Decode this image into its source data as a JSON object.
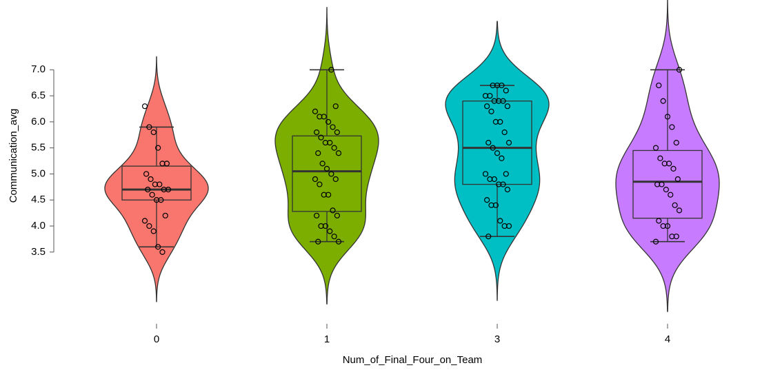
{
  "chart_data": {
    "type": "violin",
    "x_label": "Num_of_Final_Four_on_Team",
    "y_label": "Communication_avg",
    "categories": [
      "0",
      "1",
      "3",
      "4"
    ],
    "ylim": [
      2.4,
      8.3
    ],
    "yticks": [
      3.5,
      {
        "value": 4,
        "label": "4.0"
      },
      4.5,
      {
        "value": 5,
        "label": "5.0"
      },
      5.5,
      {
        "value": 6,
        "label": "6.0"
      },
      6.5,
      {
        "value": 7,
        "label": "7.0"
      }
    ],
    "groups": [
      {
        "color": "#F8766D",
        "box": {
          "whisker_low": 3.6,
          "q1": 4.5,
          "median": 4.7,
          "q3": 5.15,
          "whisker_high": 5.9
        },
        "points": [
          6.3,
          5.9,
          5.8,
          5.5,
          5.2,
          5.2,
          5.0,
          4.9,
          4.8,
          4.8,
          4.7,
          4.7,
          4.7,
          4.6,
          4.5,
          4.5,
          4.2,
          4.1,
          4.0,
          3.9,
          3.6,
          3.5
        ]
      },
      {
        "color": "#7CAE00",
        "box": {
          "whisker_low": 3.7,
          "q1": 4.28,
          "median": 5.05,
          "q3": 5.73,
          "whisker_high": 7.0
        },
        "points": [
          7.0,
          6.3,
          6.2,
          6.1,
          6.1,
          6.0,
          5.9,
          5.8,
          5.8,
          5.7,
          5.6,
          5.6,
          5.5,
          5.4,
          5.4,
          5.2,
          5.1,
          5.0,
          4.9,
          4.9,
          4.8,
          4.6,
          4.6,
          4.3,
          4.2,
          4.2,
          4.0,
          4.0,
          3.9,
          3.8,
          3.7,
          3.7
        ]
      },
      {
        "color": "#00BFC4",
        "box": {
          "whisker_low": 3.8,
          "q1": 4.8,
          "median": 5.5,
          "q3": 6.4,
          "whisker_high": 6.7
        },
        "points": [
          6.7,
          6.7,
          6.7,
          6.6,
          6.5,
          6.5,
          6.4,
          6.4,
          6.4,
          6.3,
          6.3,
          6.2,
          6.0,
          6.0,
          5.8,
          5.6,
          5.6,
          5.5,
          5.4,
          5.3,
          5.0,
          5.0,
          4.9,
          4.9,
          4.8,
          4.8,
          4.7,
          4.5,
          4.4,
          4.4,
          4.1,
          4.0,
          4.0,
          3.8
        ]
      },
      {
        "color": "#C77CFF",
        "box": {
          "whisker_low": 3.7,
          "q1": 4.15,
          "median": 4.85,
          "q3": 5.45,
          "whisker_high": 7.0
        },
        "points": [
          7.0,
          6.7,
          6.4,
          6.1,
          5.9,
          5.6,
          5.5,
          5.3,
          5.2,
          5.2,
          5.1,
          4.9,
          4.8,
          4.8,
          4.7,
          4.6,
          4.4,
          4.3,
          4.1,
          4.0,
          4.0,
          3.8,
          3.8,
          3.7
        ]
      }
    ]
  }
}
